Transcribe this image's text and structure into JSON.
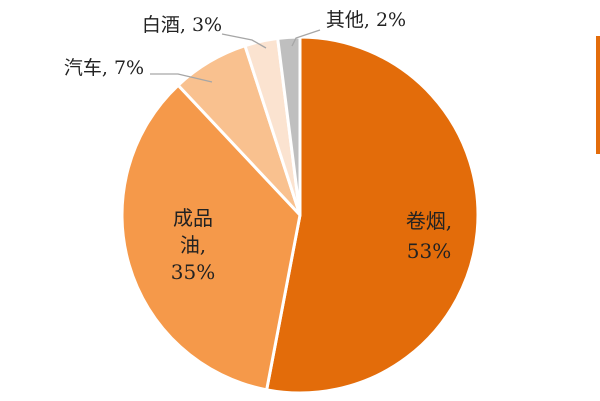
{
  "chart_data": {
    "type": "pie",
    "title": "",
    "slices": [
      {
        "category": "卷烟",
        "value": 53,
        "label_lines": [
          "卷烟,",
          "53%"
        ],
        "color": "#e36c0a"
      },
      {
        "category": "成品油",
        "value": 35,
        "label_lines": [
          "成品",
          "油,",
          "35%"
        ],
        "color": "#f5994a"
      },
      {
        "category": "汽车",
        "value": 7,
        "label_lines": [
          "汽车, 7%"
        ],
        "color": "#f9c18f"
      },
      {
        "category": "白酒",
        "value": 3,
        "label_lines": [
          "白酒, 3%"
        ],
        "color": "#fbe3d0"
      },
      {
        "category": "其他",
        "value": 2,
        "label_lines": [
          "其他, 2%"
        ],
        "color": "#bfbfbf"
      }
    ],
    "start_angle_deg": 0,
    "direction": "clockwise",
    "legend": "right (clipped)"
  }
}
